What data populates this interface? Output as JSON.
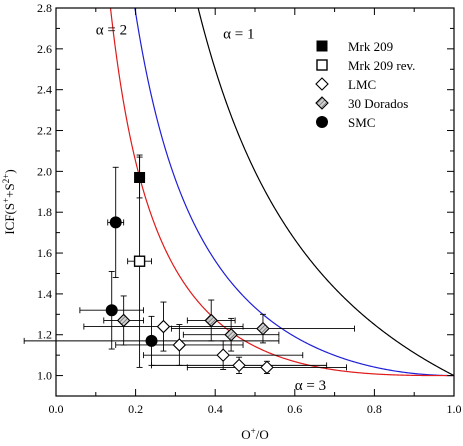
{
  "chart_data": {
    "type": "scatter",
    "xlabel_main": "O",
    "xlabel_sup": "+",
    "xlabel_tail": "/O",
    "ylabel_main": "ICF(S",
    "ylabel_sup1": "+",
    "ylabel_mid": "+S",
    "ylabel_sup2": "2+",
    "ylabel_tail": ")",
    "xlim": [
      0.0,
      1.0
    ],
    "ylim": [
      0.9,
      2.8
    ],
    "xticks": [
      0.0,
      0.2,
      0.4,
      0.6,
      0.8,
      1.0
    ],
    "xtick_labels": [
      "0.0",
      "0.2",
      "0.4",
      "0.6",
      "0.8",
      "1.0"
    ],
    "yticks": [
      1.0,
      1.2,
      1.4,
      1.6,
      1.8,
      2.0,
      2.2,
      2.4,
      2.6,
      2.8
    ],
    "ytick_labels": [
      "1.0",
      "1.2",
      "1.4",
      "1.6",
      "1.8",
      "2.0",
      "2.2",
      "2.4",
      "2.6",
      "2.8"
    ],
    "grid": false,
    "legend_position": "top-right",
    "curves": [
      {
        "name": "α = 1",
        "alpha": 1,
        "color": "#000000"
      },
      {
        "name": "α = 2",
        "alpha": 2,
        "color": "#1f1fd6"
      },
      {
        "name": "α = 3",
        "alpha": 3,
        "color": "#e01a1a"
      }
    ],
    "annotations": [
      {
        "text": "α = 2",
        "x": 0.1,
        "y": 2.67
      },
      {
        "text": "α = 1",
        "x": 0.42,
        "y": 2.65
      },
      {
        "text": "α = 3",
        "x": 0.6,
        "y": 0.93
      }
    ],
    "series": [
      {
        "name": "Mrk 209",
        "marker": "square-filled",
        "points": [
          {
            "x": 0.21,
            "y": 1.97,
            "xerr": 0.0,
            "yerr": 0.1
          }
        ]
      },
      {
        "name": "Mrk 209 rev.",
        "marker": "square-open",
        "points": [
          {
            "x": 0.21,
            "y": 1.56,
            "xerr": 0.03,
            "yerr": 0.52
          }
        ]
      },
      {
        "name": "LMC",
        "marker": "diamond-open",
        "points": [
          {
            "x": 0.27,
            "y": 1.24,
            "xerr": 0.2,
            "yerr": 0.12
          },
          {
            "x": 0.31,
            "y": 1.15,
            "xerr": 0.16,
            "yerr": 0.1
          },
          {
            "x": 0.42,
            "y": 1.1,
            "xerr": 0.2,
            "yerr": 0.07
          },
          {
            "x": 0.46,
            "y": 1.05,
            "xerr": 0.22,
            "yerr": 0.04
          },
          {
            "x": 0.53,
            "y": 1.04,
            "xerr": 0.2,
            "yerr": 0.03
          }
        ]
      },
      {
        "name": "30 Dorados",
        "marker": "diamond-hatched",
        "points": [
          {
            "x": 0.17,
            "y": 1.27,
            "xerr": 0.05,
            "yerr": 0.12
          },
          {
            "x": 0.39,
            "y": 1.27,
            "xerr": 0.06,
            "yerr": 0.1
          },
          {
            "x": 0.44,
            "y": 1.2,
            "xerr": 0.12,
            "yerr": 0.08
          },
          {
            "x": 0.52,
            "y": 1.23,
            "xerr": 0.23,
            "yerr": 0.07
          }
        ]
      },
      {
        "name": "SMC",
        "marker": "circle-filled",
        "points": [
          {
            "x": 0.15,
            "y": 1.75,
            "xerr": 0.02,
            "yerr": 0.27
          },
          {
            "x": 0.14,
            "y": 1.32,
            "xerr": 0.08,
            "yerr": 0.19
          },
          {
            "x": 0.24,
            "y": 1.17,
            "xerr": 0.32,
            "yerr": 0.12
          }
        ]
      }
    ]
  }
}
